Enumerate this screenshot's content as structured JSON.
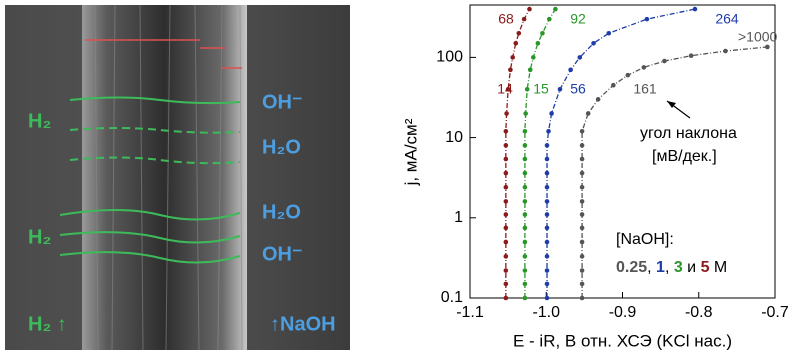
{
  "image_labels": [
    {
      "text": "H₂",
      "color": "#3dbb5a"
    },
    {
      "text": "OH⁻",
      "color": "#4d9ee0"
    },
    {
      "text": "H₂O",
      "color": "#4d9ee0"
    },
    {
      "text": "H₂O",
      "color": "#4d9ee0"
    },
    {
      "text": "H₂",
      "color": "#3dbb5a"
    },
    {
      "text": "OH⁻",
      "color": "#4d9ee0"
    },
    {
      "text": "H₂ ↑",
      "color": "#3dbb5a"
    },
    {
      "text": "↑NaOH",
      "color": "#4d9ee0"
    }
  ],
  "chart_data": {
    "type": "scatter-line",
    "x_label": "E - iR, В отн. ХСЭ (KCl нас.)",
    "y_label": "j, мА/см²",
    "yscale": "log",
    "xlim": [
      -1.1,
      -0.7
    ],
    "xticks": [
      -1.1,
      {
        "value": -1.0,
        "label": "-1.0"
      },
      -0.9,
      -0.8,
      -0.7
    ],
    "ylim": [
      0.1,
      450
    ],
    "yticks": [
      0.1,
      1,
      10,
      100
    ],
    "series": [
      {
        "name": "5",
        "color": "#8b1a1a",
        "x": [
          -1.053,
          -1.053,
          -1.053,
          -1.053,
          -1.053,
          -1.053,
          -1.053,
          -1.053,
          -1.053,
          -1.053,
          -1.053,
          -1.053,
          -1.053,
          -1.052,
          -1.05,
          -1.047,
          -1.044,
          -1.04,
          -1.036,
          -1.029,
          -1.022
        ],
        "values": [
          0.1,
          0.15,
          0.22,
          0.33,
          0.5,
          0.75,
          1.1,
          1.6,
          2.4,
          3.6,
          5.4,
          8,
          12,
          20,
          40,
          70,
          100,
          150,
          200,
          300,
          400
        ]
      },
      {
        "name": "3",
        "color": "#2a962a",
        "x": [
          -1.028,
          -1.028,
          -1.028,
          -1.028,
          -1.028,
          -1.028,
          -1.028,
          -1.028,
          -1.028,
          -1.028,
          -1.028,
          -1.028,
          -1.028,
          -1.027,
          -1.025,
          -1.021,
          -1.017,
          -1.011,
          -1.005,
          -0.996,
          -0.988
        ],
        "values": [
          0.1,
          0.15,
          0.22,
          0.33,
          0.5,
          0.75,
          1.1,
          1.6,
          2.4,
          3.6,
          5.4,
          8,
          12,
          20,
          40,
          70,
          100,
          150,
          200,
          300,
          400
        ]
      },
      {
        "name": "1",
        "color": "#1f3da8",
        "x": [
          -0.999,
          -0.999,
          -0.999,
          -0.999,
          -0.999,
          -0.999,
          -0.999,
          -0.999,
          -0.999,
          -0.999,
          -0.999,
          -0.999,
          -0.997,
          -0.993,
          -0.982,
          -0.968,
          -0.956,
          -0.938,
          -0.918,
          -0.868,
          -0.805
        ],
        "values": [
          0.1,
          0.15,
          0.22,
          0.33,
          0.5,
          0.75,
          1.1,
          1.6,
          2.4,
          3.6,
          5.4,
          8,
          12,
          20,
          40,
          70,
          100,
          150,
          200,
          300,
          400
        ]
      },
      {
        "name": "0.25",
        "color": "#555555",
        "x": [
          -0.953,
          -0.953,
          -0.953,
          -0.953,
          -0.953,
          -0.953,
          -0.953,
          -0.953,
          -0.953,
          -0.953,
          -0.953,
          -0.953,
          -0.953,
          -0.945,
          -0.932,
          -0.912,
          -0.893,
          -0.872,
          -0.845,
          -0.81,
          -0.765,
          -0.71
        ],
        "values": [
          0.1,
          0.15,
          0.22,
          0.33,
          0.5,
          0.75,
          1.1,
          1.6,
          2.4,
          3.6,
          5.4,
          8,
          12,
          20,
          30,
          45,
          60,
          75,
          90,
          105,
          120,
          135
        ]
      }
    ],
    "annotations": [
      {
        "text": "68",
        "color": "#8b1a1a"
      },
      {
        "text": "92",
        "color": "#2a962a"
      },
      {
        "text": "264",
        "color": "#1f3da8"
      },
      {
        "text": ">1000",
        "color": "#555555"
      },
      {
        "text": "14",
        "color": "#8b1a1a"
      },
      {
        "text": "15",
        "color": "#2a962a"
      },
      {
        "text": "56",
        "color": "#1f3da8"
      },
      {
        "text": "161",
        "color": "#555555"
      },
      {
        "text": "угол наклона",
        "color": "#000000"
      },
      {
        "text": "[мВ/дек.]",
        "color": "#000000"
      },
      {
        "text": "[NaOH]:",
        "color": "#000000"
      }
    ],
    "legend_parts": [
      {
        "text": "0.25",
        "color": "#555555",
        "bold": true
      },
      {
        "text": ", ",
        "color": "#000000",
        "bold": false
      },
      {
        "text": "1",
        "color": "#1f3da8",
        "bold": true
      },
      {
        "text": ", ",
        "color": "#000000",
        "bold": false
      },
      {
        "text": "3",
        "color": "#2a962a",
        "bold": true
      },
      {
        "text": " и ",
        "color": "#000000",
        "bold": false
      },
      {
        "text": "5",
        "color": "#8b1a1a",
        "bold": true
      },
      {
        "text": " M",
        "color": "#000000",
        "bold": false
      }
    ]
  }
}
